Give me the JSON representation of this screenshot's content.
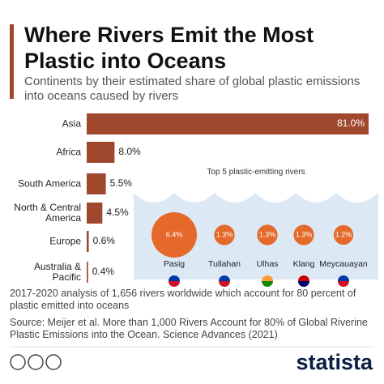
{
  "page": {
    "note": "2017-2020 analysis of 1,656 rivers worldwide which account for 80 percent of plastic emitted into oceans",
    "source": "Source: Meijer et al. More than 1,000 Rivers Account for 80% of Global Riverine Plastic Emissions into the Ocean. Science Advances (2021)",
    "brand": "statista"
  },
  "chart_data": [
    {
      "type": "bar",
      "title": "Where Rivers Emit the Most Plastic into Oceans",
      "subtitle": "Continents by their estimated share of global plastic emissions into oceans caused by rivers",
      "categories": [
        "Asia",
        "Africa",
        "South America",
        "North & Central America",
        "Europe",
        "Australia & Pacific"
      ],
      "values": [
        81.0,
        8.0,
        5.5,
        4.5,
        0.6,
        0.4
      ],
      "value_labels": [
        "81.0%",
        "8.0%",
        "5.5%",
        "4.5%",
        "0.6%",
        "0.4%"
      ],
      "color": "#a0482e"
    },
    {
      "type": "bubble",
      "title": "Top 5 plastic-emitting rivers",
      "categories": [
        "Pasig",
        "Tullahan",
        "Ulhas",
        "Klang",
        "Meycauayan"
      ],
      "values": [
        6.4,
        1.3,
        1.3,
        1.3,
        1.2
      ],
      "value_labels": [
        "6.4%",
        "1.3%",
        "1.3%",
        "1.3%",
        "1.2%"
      ],
      "color": "#e4692a"
    }
  ]
}
